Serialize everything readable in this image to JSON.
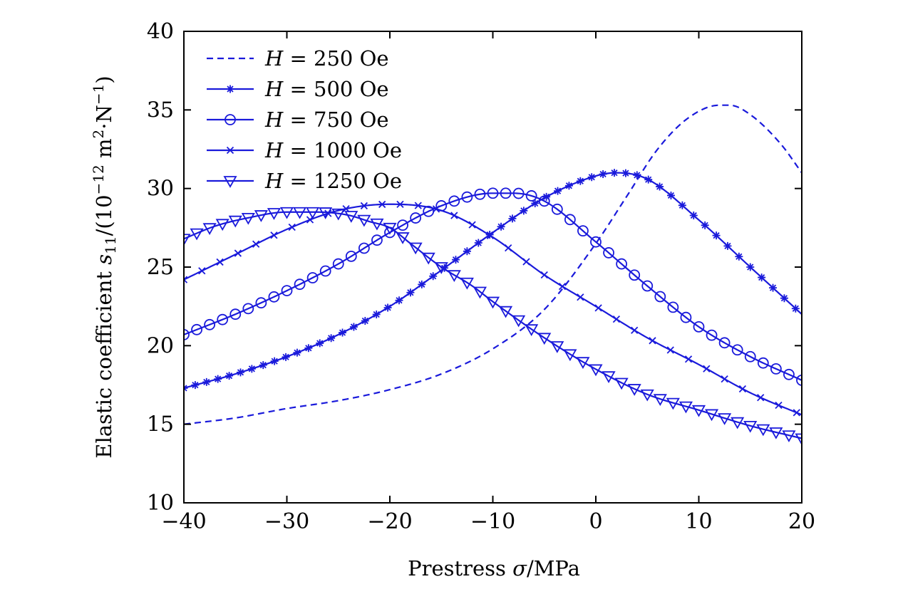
{
  "chart_data": {
    "type": "line",
    "xlabel": "Prestress σ/MPa",
    "ylabel": "Elastic coefficient s11/(10−12 m2·N−1)",
    "ylabel_parts": {
      "text": "Elastic coefficient ",
      "sym": "s",
      "sym_sub": "11",
      "open": "/(10",
      "exp1": "−12",
      "mid": " m",
      "exp2": "2",
      "mid2": "·N",
      "exp3": "−1",
      "close": ")"
    },
    "xlabel_parts": {
      "text": "Prestress ",
      "sym": "σ",
      "unit": "/MPa"
    },
    "xlim": [
      -40,
      20
    ],
    "ylim": [
      10,
      40
    ],
    "xticks": [
      -40,
      -30,
      -20,
      -10,
      0,
      10,
      20
    ],
    "xtick_labels": [
      "−40",
      "−30",
      "−20",
      "−10",
      "0",
      "10",
      "20"
    ],
    "yticks": [
      10,
      15,
      20,
      25,
      30,
      35,
      40
    ],
    "ytick_labels": [
      "10",
      "15",
      "20",
      "25",
      "30",
      "35",
      "40"
    ],
    "grid": false,
    "legend_position": "top-left",
    "line_color": "#1a1adb",
    "series": [
      {
        "name": "H = 250 Oe",
        "label_sym": "H",
        "label_rest": " = 250 Oe",
        "marker": "none",
        "dash": "dashed",
        "x": [
          -40,
          -35,
          -30,
          -25,
          -20,
          -15,
          -10,
          -5,
          0,
          3,
          6,
          9,
          12,
          13,
          15,
          18,
          20
        ],
        "y": [
          15.0,
          15.4,
          16.0,
          16.5,
          17.2,
          18.2,
          19.8,
          22.3,
          26.5,
          29.5,
          32.5,
          34.5,
          35.3,
          35.3,
          34.7,
          32.8,
          31.0
        ]
      },
      {
        "name": "H = 500 Oe",
        "label_sym": "H",
        "label_rest": " = 500 Oe",
        "marker": "star",
        "dash": "solid",
        "x": [
          -40,
          -35,
          -30,
          -25,
          -20,
          -15,
          -10,
          -5,
          0,
          2,
          5,
          10,
          15,
          20
        ],
        "y": [
          17.3,
          18.2,
          19.3,
          20.7,
          22.5,
          24.8,
          27.2,
          29.4,
          30.8,
          31.0,
          30.6,
          28.0,
          25.0,
          22.0
        ]
      },
      {
        "name": "H = 750 Oe",
        "label_sym": "H",
        "label_rest": " = 750 Oe",
        "marker": "circle",
        "dash": "solid",
        "x": [
          -40,
          -35,
          -30,
          -25,
          -20,
          -15,
          -10,
          -8,
          -5,
          0,
          5,
          10,
          15,
          20
        ],
        "y": [
          20.7,
          22.0,
          23.5,
          25.2,
          27.2,
          28.9,
          29.7,
          29.7,
          29.2,
          26.6,
          23.8,
          21.2,
          19.3,
          17.8
        ]
      },
      {
        "name": "H = 1000 Oe",
        "label_sym": "H",
        "label_rest": " = 1000 Oe",
        "marker": "x",
        "dash": "solid",
        "x": [
          -40,
          -35,
          -30,
          -25,
          -20,
          -15,
          -10,
          -5,
          0,
          5,
          10,
          15,
          20
        ],
        "y": [
          24.2,
          25.8,
          27.4,
          28.6,
          29.0,
          28.6,
          26.9,
          24.5,
          22.5,
          20.5,
          18.8,
          17.0,
          15.6
        ]
      },
      {
        "name": "H = 1250 Oe",
        "label_sym": "H",
        "label_rest": " = 1250 Oe",
        "marker": "triangle-down",
        "dash": "solid",
        "x": [
          -40,
          -37,
          -34,
          -30,
          -27,
          -24,
          -22,
          -20,
          -18,
          -15,
          -12,
          -10,
          -5,
          0,
          5,
          10,
          15,
          20
        ],
        "y": [
          26.8,
          27.6,
          28.1,
          28.5,
          28.5,
          28.3,
          27.9,
          27.5,
          26.5,
          25.0,
          23.8,
          22.8,
          20.5,
          18.5,
          16.9,
          15.9,
          14.9,
          14.1
        ]
      }
    ]
  }
}
